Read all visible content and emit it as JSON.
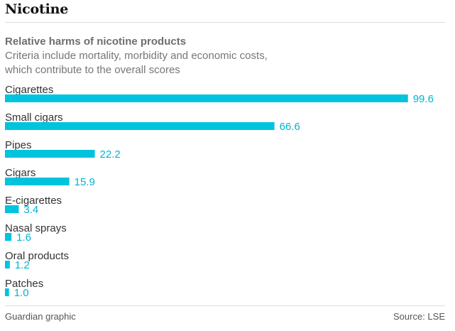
{
  "header": {
    "title": "Nicotine",
    "subtitle": "Relative harms of nicotine products",
    "description_line1": "Criteria include mortality, morbidity and economic costs,",
    "description_line2": "which contribute to the overall scores"
  },
  "footer": {
    "credit": "Guardian graphic",
    "source": "Source: LSE"
  },
  "colors": {
    "bar": "#00c3de",
    "value_label": "#00b4d2",
    "category_label": "#333333"
  },
  "chart_data": {
    "type": "bar",
    "orientation": "horizontal",
    "categories": [
      "Cigarettes",
      "Small cigars",
      "Pipes",
      "Cigars",
      "E-cigarettes",
      "Nasal sprays",
      "Oral products",
      "Patches"
    ],
    "values": [
      99.6,
      66.6,
      22.2,
      15.9,
      3.4,
      1.6,
      1.2,
      1.0
    ],
    "value_labels": [
      "99.6",
      "66.6",
      "22.2",
      "15.9",
      "3.4",
      "1.6",
      "1.2",
      "1.0"
    ],
    "title": "Relative harms of nicotine products",
    "xlabel": "",
    "ylabel": "",
    "xlim": [
      0,
      100
    ],
    "grid": false,
    "legend": "none"
  }
}
